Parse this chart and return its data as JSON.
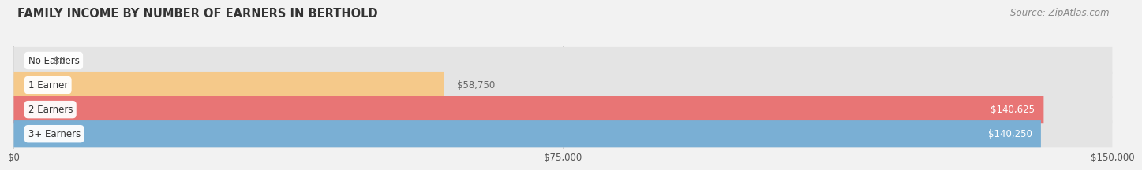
{
  "title": "FAMILY INCOME BY NUMBER OF EARNERS IN BERTHOLD",
  "source": "Source: ZipAtlas.com",
  "categories": [
    "No Earners",
    "1 Earner",
    "2 Earners",
    "3+ Earners"
  ],
  "values": [
    0,
    58750,
    140625,
    140250
  ],
  "bar_colors": [
    "#f4a0b0",
    "#f5c98a",
    "#e87575",
    "#7aafd4"
  ],
  "value_labels": [
    "$0",
    "$58,750",
    "$140,625",
    "$140,250"
  ],
  "value_label_inside": [
    false,
    false,
    true,
    true
  ],
  "value_label_colors_inside": [
    "#ffffff",
    "#ffffff",
    "#ffffff",
    "#ffffff"
  ],
  "value_label_colors_outside": [
    "#666666",
    "#666666",
    "#666666",
    "#666666"
  ],
  "xlim": [
    0,
    150000
  ],
  "xticks": [
    0,
    75000,
    150000
  ],
  "xticklabels": [
    "$0",
    "$75,000",
    "$150,000"
  ],
  "background_color": "#f2f2f2",
  "bar_background_color": "#e4e4e4",
  "title_fontsize": 10.5,
  "source_fontsize": 8.5
}
